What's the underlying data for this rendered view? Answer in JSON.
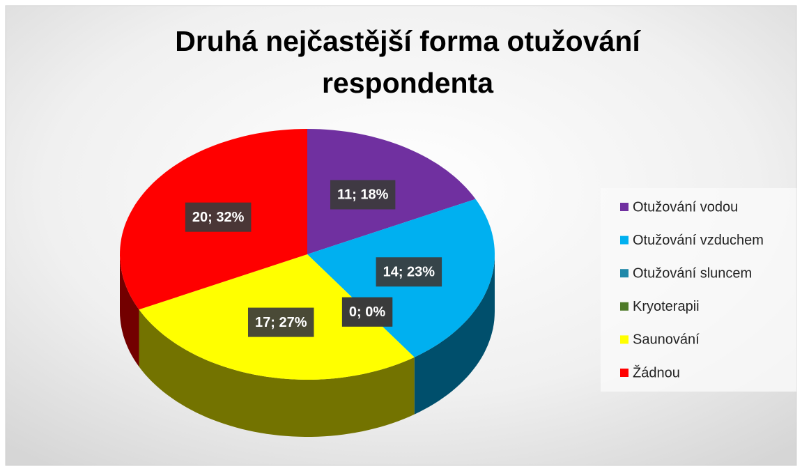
{
  "chart_data": {
    "type": "pie3d",
    "title": [
      "Druhá nejčastější forma otužování",
      "respondenta"
    ],
    "categories": [
      "Otužování vodou",
      "Otužování vzduchem",
      "Otužování sluncem",
      "Kryoterapii",
      "Saunování",
      "Žádnou"
    ],
    "values": [
      11,
      14,
      0,
      0,
      17,
      20
    ],
    "value_labels": [
      "11; 18%",
      "14; 23%",
      "0; 0%",
      "0; 0%",
      "17; 27%",
      "20; 32%"
    ],
    "colors": [
      "#7030a0",
      "#00b0f0",
      "#1e87a8",
      "#4e7a28",
      "#ffff00",
      "#ff0000"
    ],
    "legend": "right"
  }
}
